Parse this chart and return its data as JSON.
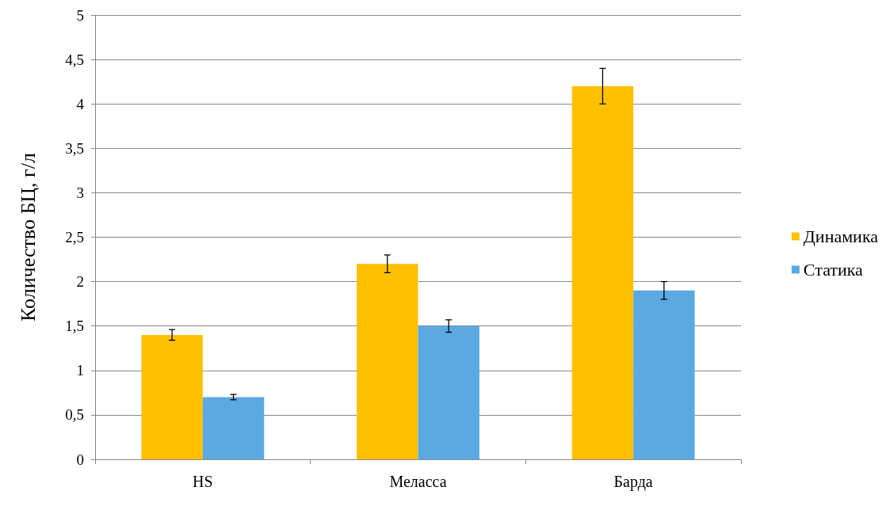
{
  "chart_data": {
    "type": "bar",
    "ylabel": "Количество БЦ, г/л",
    "categories": [
      "HS",
      "Меласса",
      "Барда"
    ],
    "series": [
      {
        "name": "Динамика",
        "color": "#ffc000",
        "values": [
          1.4,
          2.2,
          4.2
        ],
        "errors": [
          0.06,
          0.1,
          0.2
        ]
      },
      {
        "name": "Статика",
        "color": "#5ba9e3",
        "values": [
          0.7,
          1.5,
          1.9
        ],
        "errors": [
          0.03,
          0.07,
          0.1
        ]
      }
    ],
    "ylim": [
      0,
      5
    ],
    "yticks": [
      0,
      {
        "value": 0.5,
        "label": "0,5"
      },
      1,
      {
        "value": 1.5,
        "label": "1,5"
      },
      2,
      {
        "value": 2.5,
        "label": "2,5"
      },
      3,
      {
        "value": 3.5,
        "label": "3,5"
      },
      4,
      {
        "value": 4.5,
        "label": "4,5"
      },
      5
    ],
    "grid": "y",
    "legend": "right"
  }
}
